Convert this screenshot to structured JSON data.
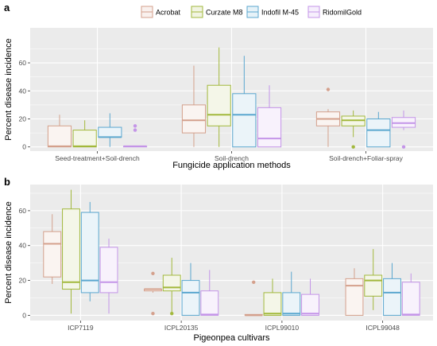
{
  "legend": {
    "entries": [
      {
        "label": "Acrobat",
        "color": "#D4A08C"
      },
      {
        "label": "Curzate M8",
        "color": "#A2B83C"
      },
      {
        "label": "Indofil M-45",
        "color": "#5BA7CF"
      },
      {
        "label": "RidomilGold",
        "color": "#C495E8"
      }
    ]
  },
  "panels": [
    {
      "tag": "a"
    },
    {
      "tag": "b"
    }
  ],
  "chart_data": [
    {
      "type": "box",
      "panel": "a",
      "xlabel": "Fungicide application methods",
      "ylabel": "Percent disease incidence",
      "ylim": [
        -3,
        85
      ],
      "yticks": [
        0,
        20,
        40,
        60
      ],
      "grid": true,
      "legend_position": "top",
      "categories": [
        "Seed-treatment+Soil-drench",
        "Soil-drench",
        "Soil-drench+Foliar-spray"
      ],
      "series": [
        {
          "name": "Acrobat",
          "boxes": [
            {
              "min": 0,
              "q1": 0,
              "median": 0.5,
              "q3": 15,
              "max": 23,
              "outliers": []
            },
            {
              "min": 0,
              "q1": 10,
              "median": 19,
              "q3": 30,
              "max": 58,
              "outliers": []
            },
            {
              "min": 0,
              "q1": 15,
              "median": 20,
              "q3": 25,
              "max": 27,
              "outliers": [
                41
              ]
            }
          ]
        },
        {
          "name": "Curzate M8",
          "boxes": [
            {
              "min": 0,
              "q1": 0,
              "median": 0.5,
              "q3": 12,
              "max": 19,
              "outliers": []
            },
            {
              "min": 0,
              "q1": 15,
              "median": 23,
              "q3": 44,
              "max": 71,
              "outliers": []
            },
            {
              "min": 7,
              "q1": 15,
              "median": 19,
              "q3": 22,
              "max": 26,
              "outliers": [
                0
              ]
            }
          ]
        },
        {
          "name": "Indofil M-45",
          "boxes": [
            {
              "min": 0,
              "q1": 7,
              "median": 7,
              "q3": 14,
              "max": 24,
              "outliers": []
            },
            {
              "min": 0,
              "q1": 0,
              "median": 23,
              "q3": 38,
              "max": 65,
              "outliers": []
            },
            {
              "min": 0,
              "q1": 0,
              "median": 12,
              "q3": 20,
              "max": 25,
              "outliers": []
            }
          ]
        },
        {
          "name": "RidomilGold",
          "boxes": [
            {
              "min": 0,
              "q1": 0,
              "median": 0.5,
              "q3": 0.5,
              "max": 0.5,
              "outliers": [
                12,
                15
              ]
            },
            {
              "min": 0,
              "q1": 0,
              "median": 6,
              "q3": 28,
              "max": 44,
              "outliers": []
            },
            {
              "min": 12,
              "q1": 14,
              "median": 17,
              "q3": 21,
              "max": 26,
              "outliers": [
                0
              ]
            }
          ]
        }
      ]
    },
    {
      "type": "box",
      "panel": "b",
      "xlabel": "Pigeonpea cultivars",
      "ylabel": "Percent disease incidence",
      "ylim": [
        -3,
        75
      ],
      "yticks": [
        0,
        20,
        40,
        60
      ],
      "grid": true,
      "categories": [
        "ICP7119",
        "ICPL20135",
        "ICPL99010",
        "ICPL99048"
      ],
      "series": [
        {
          "name": "Acrobat",
          "boxes": [
            {
              "min": 18,
              "q1": 22,
              "median": 41,
              "q3": 48,
              "max": 58,
              "outliers": []
            },
            {
              "min": 13,
              "q1": 14,
              "median": 15,
              "q3": 15,
              "max": 15,
              "outliers": [
                1,
                24
              ]
            },
            {
              "min": 0,
              "q1": 0,
              "median": 0,
              "q3": 0.5,
              "max": 0.5,
              "outliers": [
                19
              ]
            },
            {
              "min": 0,
              "q1": 0,
              "median": 17,
              "q3": 21,
              "max": 27,
              "outliers": []
            }
          ]
        },
        {
          "name": "Curzate M8",
          "boxes": [
            {
              "min": 1,
              "q1": 15,
              "median": 19,
              "q3": 61,
              "max": 72,
              "outliers": []
            },
            {
              "min": 1,
              "q1": 14,
              "median": 16,
              "q3": 23,
              "max": 33,
              "outliers": [
                1
              ]
            },
            {
              "min": 0,
              "q1": 0,
              "median": 1,
              "q3": 13,
              "max": 21,
              "outliers": []
            },
            {
              "min": 3,
              "q1": 11,
              "median": 20,
              "q3": 23,
              "max": 38,
              "outliers": []
            }
          ]
        },
        {
          "name": "Indofil M-45",
          "boxes": [
            {
              "min": 8,
              "q1": 13,
              "median": 20,
              "q3": 59,
              "max": 65,
              "outliers": []
            },
            {
              "min": 0,
              "q1": 0,
              "median": 13,
              "q3": 20,
              "max": 30,
              "outliers": []
            },
            {
              "min": 0,
              "q1": 0,
              "median": 1,
              "q3": 13,
              "max": 25,
              "outliers": []
            },
            {
              "min": 0,
              "q1": 0,
              "median": 13,
              "q3": 21,
              "max": 30,
              "outliers": []
            }
          ]
        },
        {
          "name": "RidomilGold",
          "boxes": [
            {
              "min": 1,
              "q1": 13,
              "median": 19,
              "q3": 39,
              "max": 44,
              "outliers": []
            },
            {
              "min": 0,
              "q1": 0,
              "median": 0.5,
              "q3": 14,
              "max": 26,
              "outliers": []
            },
            {
              "min": 0,
              "q1": 0,
              "median": 1,
              "q3": 12,
              "max": 21,
              "outliers": []
            },
            {
              "min": 0,
              "q1": 0,
              "median": 0.5,
              "q3": 19,
              "max": 24,
              "outliers": []
            }
          ]
        }
      ]
    }
  ]
}
